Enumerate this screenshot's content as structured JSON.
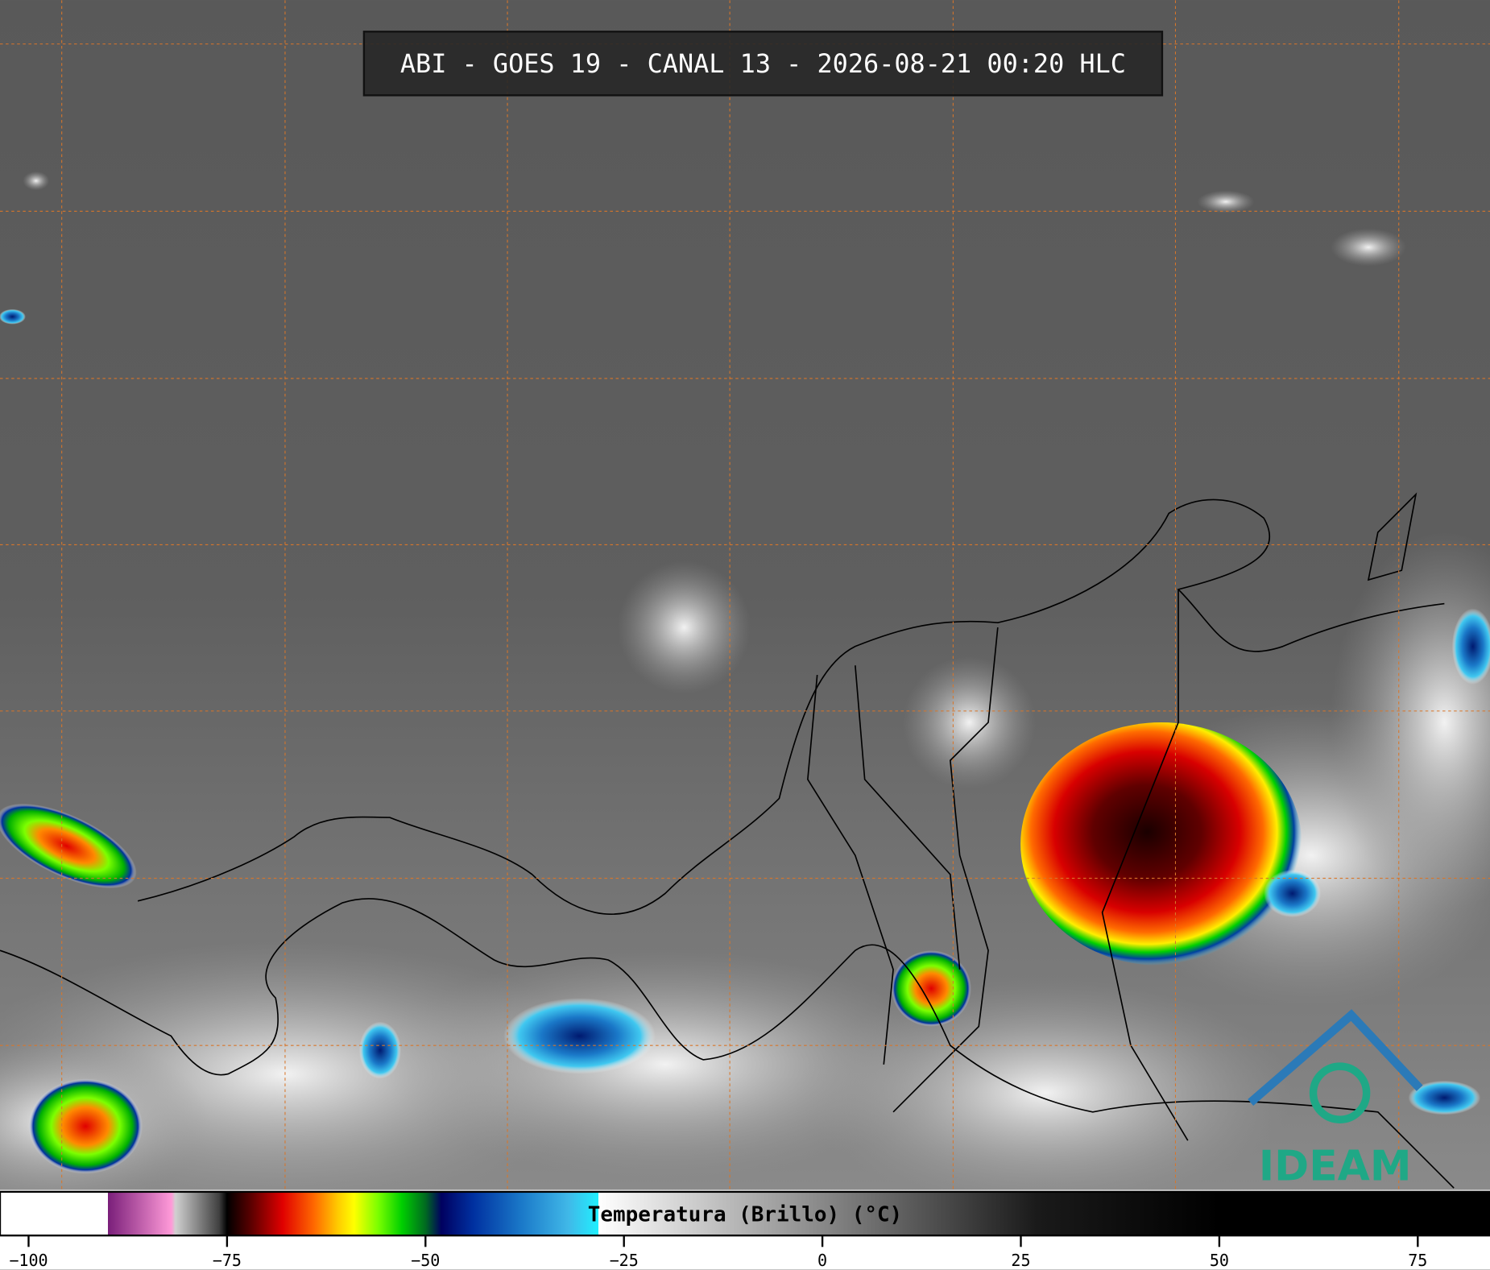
{
  "header": {
    "title": "ABI - GOES 19 - CANAL 13 - 2026-08-21 00:20 HLC"
  },
  "colorbar": {
    "label": "Temperatura (Brillo) (°C)",
    "range": [
      -103.6,
      84.1
    ],
    "ticks": [
      {
        "value": -100,
        "label": "−100"
      },
      {
        "value": -75,
        "label": "−75"
      },
      {
        "value": -50,
        "label": "−50"
      },
      {
        "value": -25,
        "label": "−25"
      },
      0,
      25,
      50,
      75
    ],
    "stops": [
      {
        "value": -103.6,
        "color": "#ffffff"
      },
      {
        "value": -90,
        "color": "#ffffff"
      },
      {
        "value": -90,
        "color": "#7a1f7a"
      },
      {
        "value": -82,
        "color": "#ff9ad8"
      },
      {
        "value": -81.5,
        "color": "#d0d0d0"
      },
      {
        "value": -76,
        "color": "#404040"
      },
      {
        "value": -75,
        "color": "#000000"
      },
      {
        "value": -72,
        "color": "#5a0000"
      },
      {
        "value": -68,
        "color": "#e00000"
      },
      {
        "value": -64,
        "color": "#ff6a00"
      },
      {
        "value": -61,
        "color": "#ffcc00"
      },
      {
        "value": -59,
        "color": "#ffff00"
      },
      {
        "value": -56,
        "color": "#7cff00"
      },
      {
        "value": -53,
        "color": "#00d000"
      },
      {
        "value": -50,
        "color": "#006a20"
      },
      {
        "value": -48,
        "color": "#000060"
      },
      {
        "value": -44,
        "color": "#0030a0"
      },
      {
        "value": -38,
        "color": "#1a78c8"
      },
      {
        "value": -32,
        "color": "#40b8e8"
      },
      {
        "value": -28.2,
        "color": "#20f0ff"
      },
      {
        "value": -28.2,
        "color": "#ffffff"
      },
      {
        "value": 0,
        "color": "#888888"
      },
      {
        "value": 27,
        "color": "#1a1a1a"
      },
      {
        "value": 50,
        "color": "#000000"
      },
      {
        "value": 84.1,
        "color": "#000000"
      }
    ]
  },
  "logo": {
    "text": "IDEAM"
  }
}
